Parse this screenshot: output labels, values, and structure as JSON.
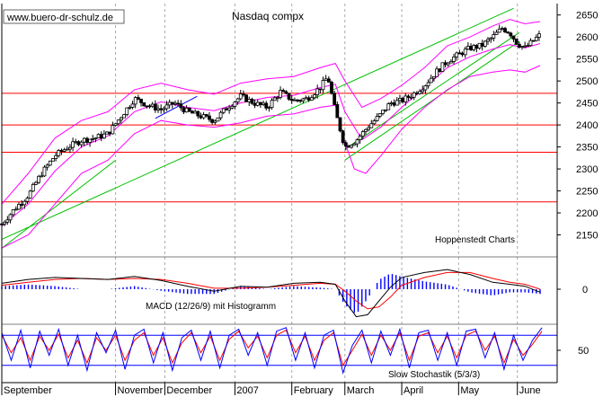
{
  "chart_data": [
    {
      "type": "line",
      "title": "Nasdaq compx",
      "subtype": "candlestick with Bollinger bands and trend lines",
      "watermark": "www.buero-dr-schulz.de",
      "annotation": "Hoppenstedt Charts",
      "ylim": [
        2100,
        2680
      ],
      "y_ticks": [
        2150,
        2200,
        2250,
        2300,
        2350,
        2400,
        2450,
        2500,
        2550,
        2600,
        2650
      ],
      "x_month_labels": [
        "September",
        "November",
        "December",
        "2007",
        "February",
        "March",
        "April",
        "May",
        "June"
      ],
      "x_month_start_day": [
        0,
        60,
        86,
        123,
        153,
        181,
        211,
        241,
        272
      ],
      "x_range_days": [
        0,
        293
      ],
      "horizontal_levels": [
        2225,
        2338,
        2400,
        2472
      ],
      "upper_channel": {
        "x_days": [
          0,
          270
        ],
        "y": [
          2140,
          2665
        ]
      },
      "lower_channel": {
        "x_days": [
          181,
          273
        ],
        "y": [
          2320,
          2590
        ]
      },
      "short_trend": {
        "x_days": [
          81,
          103
        ],
        "y": [
          2415,
          2465
        ]
      },
      "close_series": {
        "x_days": [
          0,
          7,
          14,
          21,
          28,
          35,
          42,
          49,
          56,
          63,
          70,
          77,
          84,
          91,
          98,
          105,
          112,
          119,
          126,
          133,
          140,
          147,
          154,
          161,
          168,
          172,
          176,
          181,
          187,
          193,
          199,
          205,
          211,
          217,
          223,
          229,
          235,
          241,
          247,
          253,
          259,
          264,
          268,
          272,
          276,
          280,
          284
        ],
        "y": [
          2175,
          2210,
          2240,
          2290,
          2330,
          2350,
          2365,
          2370,
          2380,
          2420,
          2460,
          2445,
          2435,
          2450,
          2430,
          2420,
          2410,
          2440,
          2465,
          2450,
          2440,
          2475,
          2455,
          2460,
          2485,
          2510,
          2430,
          2350,
          2365,
          2395,
          2420,
          2450,
          2455,
          2470,
          2490,
          2520,
          2545,
          2560,
          2575,
          2580,
          2600,
          2620,
          2610,
          2585,
          2575,
          2590,
          2605
        ]
      },
      "upper_band": {
        "x_days": [
          0,
          14,
          28,
          42,
          56,
          70,
          84,
          98,
          112,
          126,
          140,
          154,
          168,
          176,
          181,
          190,
          200,
          211,
          223,
          235,
          247,
          259,
          268,
          276,
          284
        ],
        "y": [
          2220,
          2290,
          2370,
          2410,
          2430,
          2480,
          2495,
          2480,
          2470,
          2495,
          2505,
          2510,
          2530,
          2540,
          2500,
          2440,
          2460,
          2490,
          2530,
          2580,
          2600,
          2625,
          2640,
          2630,
          2635
        ]
      },
      "lower_band": {
        "x_days": [
          0,
          14,
          28,
          42,
          56,
          70,
          84,
          98,
          112,
          126,
          140,
          154,
          168,
          176,
          181,
          186,
          192,
          200,
          211,
          223,
          235,
          247,
          259,
          268,
          276,
          284
        ],
        "y": [
          2120,
          2150,
          2220,
          2290,
          2320,
          2380,
          2410,
          2400,
          2395,
          2405,
          2420,
          2425,
          2440,
          2445,
          2360,
          2300,
          2290,
          2330,
          2390,
          2440,
          2480,
          2510,
          2520,
          2525,
          2520,
          2535
        ]
      }
    },
    {
      "type": "bar",
      "title": "MACD (12/26/9) mit Histogramm",
      "ylim": [
        -32,
        32
      ],
      "y_ticks": [
        0
      ],
      "x_days": [
        0,
        14,
        28,
        42,
        56,
        70,
        84,
        98,
        112,
        126,
        140,
        154,
        168,
        176,
        181,
        187,
        193,
        199,
        205,
        211,
        223,
        235,
        247,
        259,
        268,
        276,
        284
      ],
      "macd_line": [
        6,
        10,
        12,
        11,
        10,
        13,
        9,
        3,
        -2,
        3,
        2,
        6,
        7,
        5,
        -12,
        -28,
        -26,
        -12,
        2,
        12,
        17,
        20,
        15,
        7,
        5,
        3,
        -3
      ],
      "signal_line": [
        4,
        7,
        10,
        11,
        10,
        11,
        10,
        6,
        1,
        1,
        2,
        4,
        6,
        5,
        -2,
        -12,
        -20,
        -18,
        -8,
        4,
        12,
        17,
        17,
        11,
        7,
        5,
        0
      ]
    },
    {
      "type": "line",
      "title": "Slow Stochastik (5/3/3)",
      "ylim": [
        0,
        100
      ],
      "y_ticks": [
        50
      ],
      "levels": [
        20,
        80
      ],
      "k_line": {
        "x_days": [
          0,
          5,
          10,
          15,
          20,
          25,
          30,
          35,
          40,
          45,
          50,
          55,
          60,
          65,
          70,
          75,
          80,
          85,
          90,
          95,
          100,
          105,
          110,
          115,
          120,
          125,
          130,
          135,
          140,
          145,
          150,
          155,
          160,
          165,
          170,
          175,
          180,
          185,
          190,
          195,
          200,
          205,
          210,
          215,
          220,
          225,
          230,
          235,
          240,
          245,
          250,
          255,
          260,
          265,
          270,
          275,
          280,
          285
        ],
        "y": [
          85,
          30,
          90,
          15,
          88,
          40,
          92,
          20,
          80,
          10,
          85,
          45,
          90,
          12,
          80,
          92,
          25,
          85,
          10,
          75,
          90,
          30,
          88,
          15,
          80,
          92,
          40,
          85,
          20,
          88,
          95,
          30,
          85,
          15,
          80,
          90,
          5,
          60,
          90,
          25,
          88,
          40,
          92,
          15,
          85,
          90,
          30,
          85,
          20,
          88,
          92,
          35,
          85,
          12,
          80,
          30,
          70,
          95
        ]
      },
      "d_line": {
        "x_days": [
          0,
          5,
          10,
          15,
          20,
          25,
          30,
          35,
          40,
          45,
          50,
          55,
          60,
          65,
          70,
          75,
          80,
          85,
          90,
          95,
          100,
          105,
          110,
          115,
          120,
          125,
          130,
          135,
          140,
          145,
          150,
          155,
          160,
          165,
          170,
          175,
          180,
          185,
          190,
          195,
          200,
          205,
          210,
          215,
          220,
          225,
          230,
          235,
          240,
          245,
          250,
          255,
          260,
          265,
          270,
          275,
          280,
          285
        ],
        "y": [
          80,
          45,
          75,
          30,
          78,
          50,
          82,
          35,
          70,
          25,
          75,
          50,
          80,
          30,
          70,
          85,
          40,
          75,
          25,
          65,
          85,
          45,
          78,
          30,
          72,
          88,
          55,
          78,
          35,
          80,
          90,
          45,
          78,
          30,
          70,
          85,
          20,
          50,
          82,
          40,
          80,
          50,
          85,
          30,
          78,
          85,
          45,
          78,
          35,
          80,
          88,
          50,
          78,
          25,
          72,
          40,
          62,
          88
        ]
      }
    }
  ],
  "colors": {
    "price": "#000000",
    "bollinger": "#ff00ff",
    "trend": "#00c000",
    "level": "#ff0000",
    "macd": "#000000",
    "signal": "#ff0000",
    "histogram": "#0000ff",
    "stoch_k": "#0000ff",
    "stoch_d": "#ff0000",
    "stoch_level": "#0000ff",
    "grid": "#aaaaaa"
  }
}
